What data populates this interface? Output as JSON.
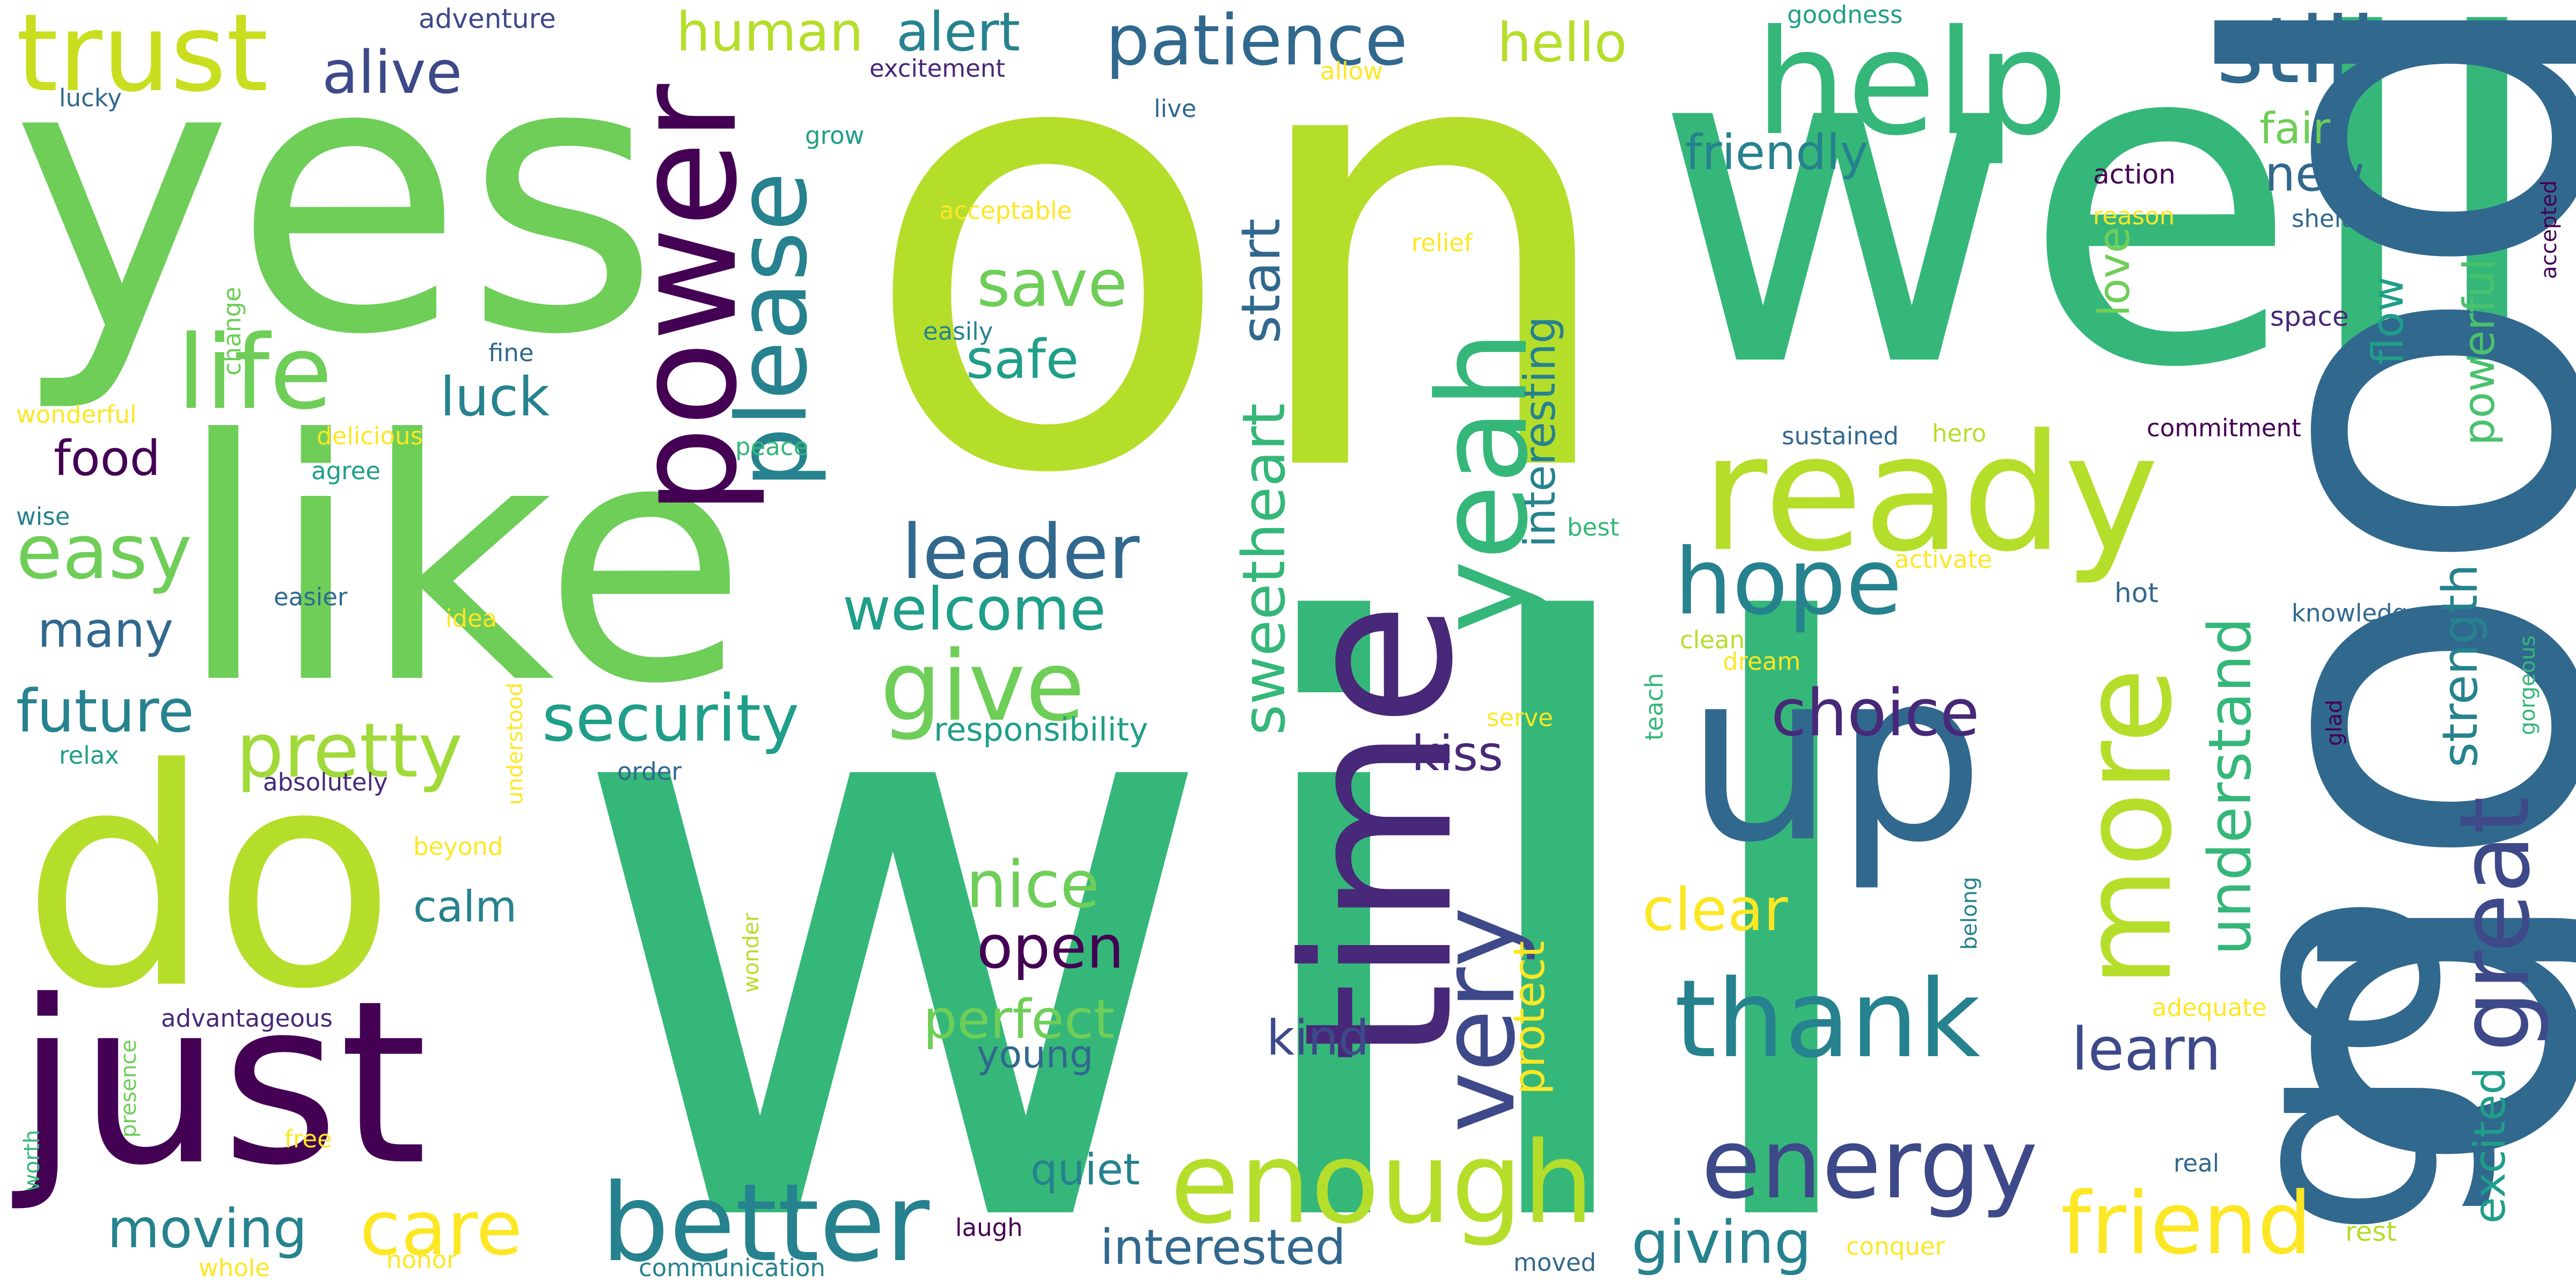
{
  "background": "#ffffff",
  "palette": {
    "dark_purple": "#440154",
    "indigo": "#482878",
    "blue_purple": "#3e4989",
    "steel_blue": "#31688e",
    "teal": "#26828e",
    "sea_green": "#1f9e89",
    "green": "#35b779",
    "light_green": "#6ece58",
    "lime": "#b5de2b",
    "yellow": "#fde725"
  },
  "words": [
    "on",
    "will",
    "well",
    "good",
    "yes",
    "like",
    "do",
    "just",
    "go",
    "time",
    "up",
    "ready",
    "power",
    "help",
    "yeah",
    "more",
    "very",
    "thank",
    "enough",
    "better",
    "please",
    "great",
    "energy",
    "trust",
    "friend",
    "life",
    "hope",
    "give",
    "understand",
    "still",
    "patience",
    "easy",
    "leader",
    "sweetheart",
    "care",
    "security",
    "pretty",
    "strength",
    "powerful",
    "welcome",
    "alive",
    "choice",
    "giving",
    "clear",
    "future",
    "learn",
    "open",
    "protect",
    "start",
    "save",
    "perfect",
    "alert",
    "human",
    "excited",
    "nice",
    "interesting",
    "interested",
    "moving",
    "hello",
    "kiss",
    "flow",
    "food",
    "love",
    "fair",
    "calm",
    "luck",
    "quiet",
    "many",
    "new",
    "friendly",
    "safe",
    "kind",
    "young",
    "responsibility",
    "adventure",
    "goodness",
    "excitement",
    "allow",
    "lucky",
    "grow",
    "live",
    "acceptable",
    "action",
    "reason",
    "shelter",
    "accepted",
    "relief",
    "change",
    "easily",
    "fine",
    "wonderful",
    "delicious",
    "space",
    "commitment",
    "sustained",
    "hero",
    "peace",
    "agree",
    "wise",
    "best",
    "activate",
    "easier",
    "idea",
    "knowledge",
    "hot",
    "gorgeous",
    "clean",
    "teach",
    "dream",
    "relax",
    "absolutely",
    "order",
    "understood",
    "serve",
    "glad",
    "beyond",
    "belong",
    "wonder",
    "advantageous",
    "adequate",
    "presence",
    "worth",
    "free",
    "real",
    "laugh",
    "whole",
    "honor",
    "communication",
    "moved",
    "conquer",
    "rest"
  ]
}
